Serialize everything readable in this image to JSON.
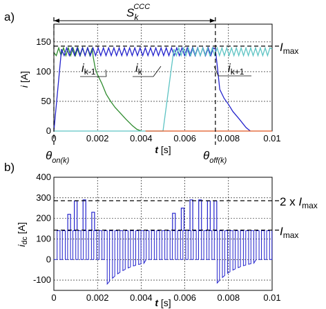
{
  "colors": {
    "ik_minus_1": "#2e8b2e",
    "ik": "#2222cc",
    "ik_plus_1": "#5cc3c3",
    "next_phase": "#e0531f",
    "idc": "#2222cc",
    "ref": "#000000"
  },
  "chart_data": [
    {
      "type": "line",
      "panel_label": "a)",
      "xlabel_main": "t",
      "xlabel_unit": "[s]",
      "ylabel_main": "i",
      "ylabel_unit": "[A]",
      "xlim": [
        0,
        0.01
      ],
      "ylim": [
        0,
        180
      ],
      "xticks": [
        "0",
        "0.002",
        "0.004",
        "0.006",
        "0.008",
        "0.01"
      ],
      "yticks": [
        "0",
        "50",
        "100",
        "150"
      ],
      "grid": true,
      "ref_line": {
        "label_main": "I",
        "label_sub": "max",
        "y": 143
      },
      "span": {
        "label_main": "S",
        "label_sub": "k",
        "label_sup": "CCC",
        "x_from": 0,
        "x_to": 0.0074
      },
      "events": [
        {
          "label_main": "θ",
          "label_sub": "on(k)",
          "x": 0
        },
        {
          "label_main": "θ",
          "label_sub": "off(k)",
          "x": 0.0074
        }
      ],
      "curve_labels": [
        {
          "main": "i",
          "sub": "k-1"
        },
        {
          "main": "i",
          "sub": "k"
        },
        {
          "main": "i",
          "sub": "k+1"
        }
      ],
      "series": [
        {
          "id": "ik_minus_1",
          "x": [
            0,
            0.0007,
            0.0016,
            0.0018,
            0.0019,
            0.002,
            0.0022,
            0.0024,
            0.0026,
            0.0028,
            0.003,
            0.0033,
            0.0036,
            0.0038,
            0.004
          ],
          "y": [
            132,
            138,
            137,
            125,
            105,
            95,
            80,
            62,
            50,
            40,
            32,
            20,
            9,
            3,
            0
          ],
          "ripple": {
            "x_from": 0,
            "x_to": 0.0018,
            "lo": 127,
            "hi": 140,
            "period": 0.00022
          }
        },
        {
          "id": "ik",
          "x": [
            0,
            0.00035,
            0.0074,
            0.0075,
            0.0076,
            0.0078,
            0.008,
            0.0082,
            0.0085,
            0.0088,
            0.009
          ],
          "y": [
            0,
            138,
            138,
            105,
            70,
            55,
            45,
            33,
            20,
            6,
            0
          ],
          "ripple": {
            "x_from": 0.00035,
            "x_to": 0.0074,
            "lo": 127,
            "hi": 140,
            "period": 0.00024
          }
        },
        {
          "id": "ik_plus_1",
          "x": [
            0,
            0.005,
            0.0055,
            0.0074,
            0.01
          ],
          "y": [
            0,
            0,
            138,
            138,
            138
          ],
          "ripple": {
            "x_from": 0.0055,
            "x_to": 0.01,
            "lo": 127,
            "hi": 140,
            "period": 0.00022
          }
        },
        {
          "id": "next_phase",
          "x": [
            0.0042,
            0.01
          ],
          "y": [
            0,
            0
          ]
        }
      ]
    },
    {
      "type": "line",
      "panel_label": "b)",
      "xlabel_main": "t",
      "xlabel_unit": "[s]",
      "ylabel_main": "i",
      "ylabel_sub": "dc",
      "ylabel_unit": "[A]",
      "xlim": [
        0,
        0.01
      ],
      "ylim": [
        -150,
        400
      ],
      "xticks": [
        "0",
        "0.002",
        "0.004",
        "0.006",
        "0.008",
        "0.01"
      ],
      "yticks": [
        "-100",
        "0",
        "100",
        "200",
        "300",
        "400"
      ],
      "grid": true,
      "ref_lines": [
        {
          "label_prefix": "2 x ",
          "label_main": "I",
          "label_sub": "max",
          "y": 286
        },
        {
          "label_prefix": "",
          "label_main": "I",
          "label_sub": "max",
          "y": 143
        }
      ],
      "series": [
        {
          "id": "idc",
          "description_of_shape": "PWM square wave switching between about +140 A and the negative phase tail current, with overlap spikes near 280 A",
          "spikes_x": [
            0.0007,
            0.001,
            0.0014,
            0.0018,
            0.0055,
            0.0059,
            0.0063,
            0.0067,
            0.0071,
            0.0074
          ],
          "spikes_y": [
            220,
            285,
            290,
            230,
            225,
            250,
            290,
            290,
            285,
            285
          ],
          "neg_tail_starts": [
            0.0024,
            0.0074
          ],
          "neg_tail_min": -125
        }
      ]
    }
  ]
}
